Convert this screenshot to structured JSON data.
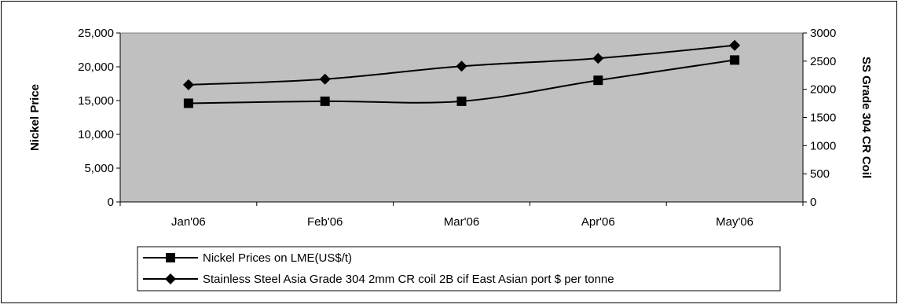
{
  "chart_data": {
    "type": "line",
    "title": "",
    "categories": [
      "Jan'06",
      "Feb'06",
      "Mar'06",
      "Apr'06",
      "May'06"
    ],
    "y_left": {
      "label": "Nickel Price",
      "ylim": [
        0,
        25000
      ],
      "ticks": [
        0,
        5000,
        10000,
        15000,
        20000,
        25000
      ],
      "tick_labels": [
        "0",
        "5,000",
        "10,000",
        "15,000",
        "20,000",
        "25,000"
      ]
    },
    "y_right": {
      "label": "SS Grade 304 CR Coil",
      "ylim": [
        0,
        3000
      ],
      "ticks": [
        0,
        500,
        1000,
        1500,
        2000,
        2500,
        3000
      ],
      "tick_labels": [
        "0",
        "500",
        "1000",
        "1500",
        "2000",
        "2500",
        "3000"
      ]
    },
    "series": [
      {
        "name": "Nickel Prices on LME(US$/t)",
        "axis": "left",
        "marker": "square",
        "values": [
          14600,
          14900,
          14900,
          18000,
          21000
        ]
      },
      {
        "name": "Stainless Steel Asia Grade 304 2mm CR coil 2B cif East Asian port $ per tonne",
        "axis": "right",
        "marker": "diamond",
        "values": [
          2080,
          2180,
          2410,
          2550,
          2780
        ]
      }
    ],
    "grid": false,
    "plot_background": "#c0c0c0",
    "line_color": "#000000",
    "legend_position": "bottom-left"
  }
}
